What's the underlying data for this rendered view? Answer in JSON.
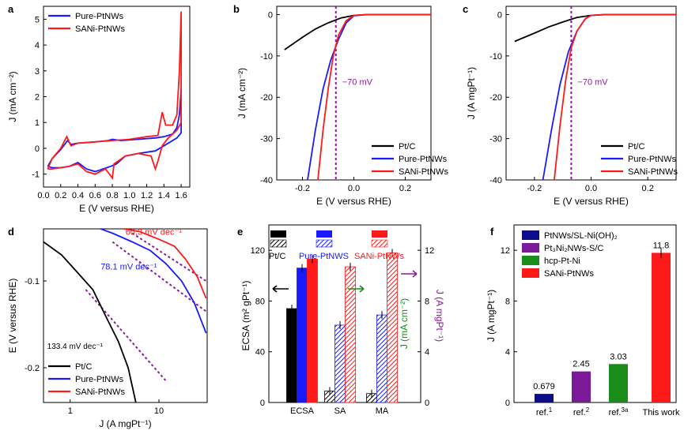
{
  "chart_data": [
    {
      "panel": "a",
      "type": "line",
      "xlabel": "E (V versus RHE)",
      "ylabel": "J (mA cm⁻²)",
      "xlim": [
        0,
        1.7
      ],
      "ylim": [
        -1.5,
        5.5
      ],
      "xticks": [
        "0.0",
        "0.2",
        "0.4",
        "0.6",
        "0.8",
        "1.0",
        "1.2",
        "1.4",
        "1.6"
      ],
      "yticks": [
        "-1",
        "0",
        "1",
        "2",
        "3",
        "4",
        "5"
      ],
      "legend": [
        "Pure-PtNWs",
        "SANi-PtNWs"
      ],
      "series": [
        {
          "name": "Pure-PtNWs",
          "color": "#1a1aff",
          "forward": [
            [
              0.05,
              -0.7
            ],
            [
              0.1,
              -0.4
            ],
            [
              0.2,
              -0.05
            ],
            [
              0.28,
              0.3
            ],
            [
              0.32,
              0.15
            ],
            [
              0.4,
              0.2
            ],
            [
              0.6,
              0.25
            ],
            [
              0.75,
              0.3
            ],
            [
              0.8,
              0.35
            ],
            [
              0.9,
              0.3
            ],
            [
              1.1,
              0.35
            ],
            [
              1.3,
              0.4
            ],
            [
              1.4,
              0.45
            ],
            [
              1.5,
              0.55
            ],
            [
              1.55,
              0.8
            ],
            [
              1.58,
              1.3
            ],
            [
              1.6,
              2.3
            ]
          ],
          "reverse": [
            [
              1.6,
              2.3
            ],
            [
              1.6,
              0.6
            ],
            [
              1.55,
              0.4
            ],
            [
              1.4,
              0.1
            ],
            [
              1.3,
              -0.1
            ],
            [
              1.1,
              -0.2
            ],
            [
              0.95,
              -0.3
            ],
            [
              0.85,
              -0.6
            ],
            [
              0.78,
              -0.7
            ],
            [
              0.65,
              -0.85
            ],
            [
              0.6,
              -0.9
            ],
            [
              0.5,
              -0.8
            ],
            [
              0.4,
              -0.55
            ],
            [
              0.3,
              -0.7
            ],
            [
              0.2,
              -0.75
            ],
            [
              0.1,
              -0.75
            ],
            [
              0.05,
              -0.7
            ]
          ]
        },
        {
          "name": "SANi-PtNWs",
          "color": "#ff1a1a",
          "forward": [
            [
              0.05,
              -0.8
            ],
            [
              0.1,
              -0.4
            ],
            [
              0.2,
              0.0
            ],
            [
              0.27,
              0.45
            ],
            [
              0.32,
              0.1
            ],
            [
              0.4,
              0.2
            ],
            [
              0.6,
              0.25
            ],
            [
              0.8,
              0.3
            ],
            [
              1.0,
              0.35
            ],
            [
              1.2,
              0.45
            ],
            [
              1.33,
              0.5
            ],
            [
              1.38,
              1.4
            ],
            [
              1.42,
              0.9
            ],
            [
              1.5,
              0.9
            ],
            [
              1.55,
              1.3
            ],
            [
              1.58,
              3.0
            ],
            [
              1.6,
              5.3
            ]
          ],
          "reverse": [
            [
              1.6,
              5.3
            ],
            [
              1.6,
              1.0
            ],
            [
              1.55,
              0.7
            ],
            [
              1.45,
              0.4
            ],
            [
              1.38,
              0.1
            ],
            [
              1.33,
              -0.5
            ],
            [
              1.3,
              -0.8
            ],
            [
              1.25,
              -0.3
            ],
            [
              1.1,
              -0.2
            ],
            [
              0.95,
              -0.3
            ],
            [
              0.82,
              -0.6
            ],
            [
              0.8,
              -1.15
            ],
            [
              0.72,
              -0.8
            ],
            [
              0.6,
              -1.0
            ],
            [
              0.5,
              -0.9
            ],
            [
              0.4,
              -0.6
            ],
            [
              0.3,
              -0.7
            ],
            [
              0.2,
              -0.75
            ],
            [
              0.1,
              -0.8
            ],
            [
              0.05,
              -0.8
            ]
          ]
        }
      ]
    },
    {
      "panel": "b",
      "type": "line",
      "xlabel": "E (V versus RHE)",
      "ylabel": "J (mA cm⁻²)",
      "xlim": [
        -0.3,
        0.3
      ],
      "ylim": [
        -40,
        2
      ],
      "xticks": [
        "-0.2",
        "0.0",
        "0.2"
      ],
      "yticks": [
        "0",
        "-10",
        "-20",
        "-30",
        "-40"
      ],
      "annotation": "−70 mV",
      "vline_x": -0.07,
      "legend": [
        "Pt/C",
        "Pure-PtNWs",
        "SANi-PtNWs"
      ],
      "series": [
        {
          "name": "Pt/C",
          "color": "#000000",
          "points": [
            [
              -0.27,
              -8.5
            ],
            [
              -0.2,
              -5.5
            ],
            [
              -0.15,
              -3.5
            ],
            [
              -0.1,
              -2.0
            ],
            [
              -0.05,
              -0.8
            ],
            [
              0.0,
              -0.2
            ],
            [
              0.05,
              0
            ],
            [
              0.3,
              0
            ]
          ]
        },
        {
          "name": "Pure-PtNWs",
          "color": "#1a1aff",
          "points": [
            [
              -0.18,
              -40
            ],
            [
              -0.15,
              -28
            ],
            [
              -0.12,
              -18
            ],
            [
              -0.09,
              -11
            ],
            [
              -0.06,
              -6
            ],
            [
              -0.03,
              -2
            ],
            [
              0.0,
              -0.3
            ],
            [
              0.05,
              0
            ],
            [
              0.3,
              0
            ]
          ]
        },
        {
          "name": "SANi-PtNWs",
          "color": "#ff1a1a",
          "points": [
            [
              -0.14,
              -40
            ],
            [
              -0.12,
              -28
            ],
            [
              -0.1,
              -18
            ],
            [
              -0.08,
              -10
            ],
            [
              -0.06,
              -5
            ],
            [
              -0.03,
              -1.5
            ],
            [
              0.0,
              -0.2
            ],
            [
              0.05,
              0
            ],
            [
              0.3,
              0
            ]
          ]
        }
      ]
    },
    {
      "panel": "c",
      "type": "line",
      "xlabel": "E (V versus RHE)",
      "ylabel": "J (A mgPt⁻¹)",
      "xlim": [
        -0.3,
        0.3
      ],
      "ylim": [
        -40,
        2
      ],
      "xticks": [
        "-0.2",
        "0.0",
        "0.2"
      ],
      "yticks": [
        "0",
        "-10",
        "-20",
        "-30",
        "-40"
      ],
      "annotation": "−70 mV",
      "vline_x": -0.07,
      "legend": [
        "Pt/C",
        "Pure-PtNWs",
        "SANi-PtNWs"
      ],
      "series": [
        {
          "name": "Pt/C",
          "color": "#000000",
          "points": [
            [
              -0.27,
              -6.5
            ],
            [
              -0.2,
              -4.5
            ],
            [
              -0.15,
              -3.0
            ],
            [
              -0.1,
              -1.8
            ],
            [
              -0.05,
              -0.7
            ],
            [
              0.0,
              -0.2
            ],
            [
              0.05,
              0
            ],
            [
              0.3,
              0
            ]
          ]
        },
        {
          "name": "Pure-PtNWs",
          "color": "#1a1aff",
          "points": [
            [
              -0.17,
              -40
            ],
            [
              -0.14,
              -28
            ],
            [
              -0.11,
              -17
            ],
            [
              -0.08,
              -9
            ],
            [
              -0.05,
              -4
            ],
            [
              -0.02,
              -1
            ],
            [
              0.0,
              -0.2
            ],
            [
              0.05,
              0
            ],
            [
              0.3,
              0
            ]
          ]
        },
        {
          "name": "SANi-PtNWs",
          "color": "#ff1a1a",
          "points": [
            [
              -0.13,
              -40
            ],
            [
              -0.11,
              -27
            ],
            [
              -0.09,
              -16
            ],
            [
              -0.07,
              -8
            ],
            [
              -0.05,
              -4
            ],
            [
              -0.02,
              -1
            ],
            [
              0.0,
              -0.2
            ],
            [
              0.05,
              0
            ],
            [
              0.3,
              0
            ]
          ]
        }
      ]
    },
    {
      "panel": "d",
      "type": "line",
      "xscale": "log",
      "xlabel": "J (A mgPt⁻¹)",
      "ylabel": "E (V versus RHE)",
      "xlim": [
        0.5,
        35
      ],
      "ylim": [
        -0.24,
        -0.04
      ],
      "xticks": [
        "1",
        "10"
      ],
      "yticks": [
        "-0.1",
        "-0.2"
      ],
      "legend": [
        "Pt/C",
        "Pure-PtNWs",
        "SANi-PtNWs"
      ],
      "annotations": [
        "60.3 mV dec⁻¹",
        "78.1 mV dec⁻¹",
        "133.4 mV dec⁻¹"
      ],
      "series": [
        {
          "name": "Pt/C",
          "color": "#000000",
          "points": [
            [
              0.5,
              -0.055
            ],
            [
              0.8,
              -0.07
            ],
            [
              1.2,
              -0.09
            ],
            [
              1.8,
              -0.11
            ],
            [
              2.5,
              -0.14
            ],
            [
              3.5,
              -0.17
            ],
            [
              4.5,
              -0.2
            ],
            [
              5.5,
              -0.24
            ]
          ]
        },
        {
          "name": "Pure-PtNWs",
          "color": "#1a1aff",
          "points": [
            [
              2.2,
              -0.04
            ],
            [
              3,
              -0.045
            ],
            [
              5,
              -0.055
            ],
            [
              8,
              -0.065
            ],
            [
              12,
              -0.08
            ],
            [
              18,
              -0.1
            ],
            [
              25,
              -0.125
            ],
            [
              34,
              -0.16
            ]
          ]
        },
        {
          "name": "SANi-PtNWs",
          "color": "#ff1a1a",
          "points": [
            [
              4,
              -0.04
            ],
            [
              6,
              -0.043
            ],
            [
              10,
              -0.052
            ],
            [
              15,
              -0.06
            ],
            [
              20,
              -0.075
            ],
            [
              27,
              -0.095
            ],
            [
              34,
              -0.12
            ]
          ]
        }
      ],
      "fits": [
        {
          "color": "#8b1a9b",
          "points": [
            [
              1.5,
              -0.11
            ],
            [
              12,
              -0.215
            ]
          ]
        },
        {
          "color": "#8b1a9b",
          "points": [
            [
              3,
              -0.055
            ],
            [
              34,
              -0.135
            ]
          ]
        },
        {
          "color": "#8b1a9b",
          "points": [
            [
              5,
              -0.045
            ],
            [
              34,
              -0.1
            ]
          ]
        }
      ]
    },
    {
      "panel": "e",
      "type": "bar",
      "categories": [
        "ECSA",
        "SA",
        "MA"
      ],
      "ylabel": "ECSA (m² gPt⁻¹)",
      "ylabel_right_1": "J (mA cm⁻²)",
      "ylabel_right_2": "J (A mgPt⁻¹)",
      "ylim": [
        0,
        140
      ],
      "yticks": [
        "0",
        "40",
        "80",
        "120"
      ],
      "yticks_right": [
        "0",
        "4",
        "8",
        "12"
      ],
      "legend": [
        "Pt/C",
        "Pure-PtNWS",
        "SANi-PtNWs"
      ],
      "series": [
        {
          "name": "Pt/C",
          "color": "#000000",
          "values": [
            74,
            9,
            7
          ]
        },
        {
          "name": "Pure-PtNWS",
          "color": "#1a1aff",
          "values": [
            106,
            61,
            69
          ]
        },
        {
          "name": "SANi-PtNWs",
          "color": "#ff1a1a",
          "values": [
            113,
            107,
            118
          ]
        }
      ]
    },
    {
      "panel": "f",
      "type": "bar",
      "categories": [
        "ref.1",
        "ref.2",
        "ref.3a",
        "This work"
      ],
      "category_labels": [
        {
          "base": "ref.",
          "sup": "1"
        },
        {
          "base": "ref.",
          "sup": "2"
        },
        {
          "base": "ref.",
          "sup": "3a"
        },
        {
          "base": "This work",
          "sup": ""
        }
      ],
      "values": [
        0.679,
        2.45,
        3.03,
        11.8
      ],
      "value_labels": [
        "0.679",
        "2.45",
        "3.03",
        "11.8"
      ],
      "colors": [
        "#0d0d8c",
        "#7a1a9b",
        "#1a8c1a",
        "#ff1a1a"
      ],
      "ylabel": "J (A mgPt⁻¹)",
      "ylim": [
        0,
        14
      ],
      "yticks": [
        "0",
        "4",
        "8",
        "12"
      ],
      "legend": [
        "PtNWs/SL-Ni(OH)₂",
        "Pt₃Ni₂NWs-S/C",
        "hcp-Pt-Ni",
        "SANi-PtNWs"
      ]
    }
  ],
  "panels": [
    "a",
    "b",
    "c",
    "d",
    "e",
    "f"
  ]
}
